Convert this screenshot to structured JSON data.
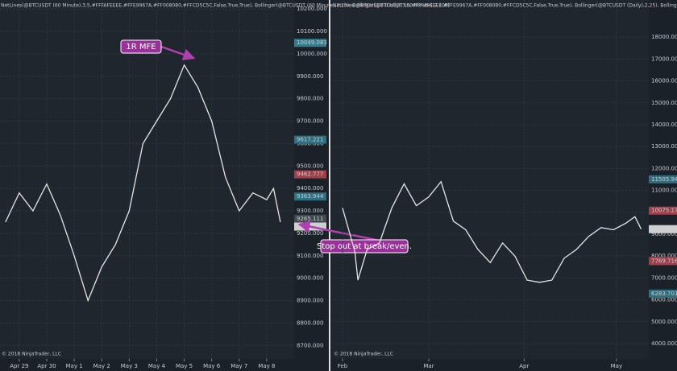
{
  "chart_data": [
    {
      "type": "line",
      "title": "NetLines(@BTCUSDT (60 Minute),3,5,#FFFAFEEEE,#FFE9967A,#FF008080,#FFCD5C5C,False,True,True), Bollinger(@BTCUSDT (60 Minute),2,25), Bollinger(@BTCUSDT (60 Minute),2,100)",
      "footer": "© 2018 NinjaTrader, LLC",
      "x": [
        0.5,
        1,
        1.5,
        2,
        2.5,
        3,
        3.5,
        4,
        4.5,
        5,
        5.5,
        6,
        6.5,
        7,
        7.5,
        8,
        8.5,
        9,
        9.5,
        10,
        10.25,
        10.5
      ],
      "series": [
        {
          "name": "BTCUSDT (60 Minute)",
          "color": "#e6e6e6",
          "values": [
            9250,
            9380,
            9300,
            9420,
            9280,
            9100,
            8900,
            9050,
            9150,
            9300,
            9600,
            9700,
            9800,
            9950,
            9850,
            9700,
            9450,
            9300,
            9380,
            9350,
            9400,
            9250
          ]
        }
      ],
      "xlim": [
        0.3,
        11
      ],
      "xticks": [
        {
          "value": 1,
          "label": "Apr 29"
        },
        {
          "value": 2,
          "label": "Apr 30"
        },
        {
          "value": 3,
          "label": "May 1"
        },
        {
          "value": 4,
          "label": "May 2"
        },
        {
          "value": 5,
          "label": "May 3"
        },
        {
          "value": 6,
          "label": "May 4"
        },
        {
          "value": 7,
          "label": "May 5"
        },
        {
          "value": 8,
          "label": "May 6"
        },
        {
          "value": 9,
          "label": "May 7"
        },
        {
          "value": 10,
          "label": "May 8"
        }
      ],
      "ylim": [
        8640,
        10240
      ],
      "yticks": [
        {
          "value": 8700,
          "label": "8700.000"
        },
        {
          "value": 8800,
          "label": "8800.000"
        },
        {
          "value": 8900,
          "label": "8900.000"
        },
        {
          "value": 9000,
          "label": "9000.000"
        },
        {
          "value": 9100,
          "label": "9100.000"
        },
        {
          "value": 9200,
          "label": "9200.000"
        },
        {
          "value": 9300,
          "label": "9300.000"
        },
        {
          "value": 9400,
          "label": "9400.000"
        },
        {
          "value": 9500,
          "label": "9500.000"
        },
        {
          "value": 9600,
          "label": "9600.000"
        },
        {
          "value": 9700,
          "label": "9700.000"
        },
        {
          "value": 9800,
          "label": "9800.000"
        },
        {
          "value": 9900,
          "label": "9900.000"
        },
        {
          "value": 10000,
          "label": "10000.000"
        },
        {
          "value": 10100,
          "label": "10100.000"
        },
        {
          "value": 10200,
          "label": "10200.000"
        }
      ],
      "grid": true,
      "price_labels": [
        {
          "value": 10049.083,
          "label": "10049.083",
          "color": "#2f7f8f"
        },
        {
          "value": 9617.221,
          "label": "9617.221",
          "color": "#2f6f7f"
        },
        {
          "value": 9462.777,
          "label": "9462.777",
          "color": "#a0404a"
        },
        {
          "value": 9363.944,
          "label": "9363.944",
          "color": "#2f6f7f"
        },
        {
          "value": 9265.111,
          "label": "9265.111",
          "color": "#404a50"
        },
        {
          "value": 9230,
          "label": "9230.000",
          "color": "#d0d0d0"
        }
      ],
      "annotations": [
        "1R MFE",
        "Stop out at break/even."
      ]
    },
    {
      "type": "line",
      "title": "NetLines(@BTCUSDT (Daily),3,5,#FFFAFEEEE,#FFE9967A,#FF008080,#FFCD5C5C,False,True,True), Bollinger(@BTCUSDT (Daily),2,25), Bollinger(@BTCUSDT (Daily),2,100)",
      "footer": "© 2018 NinjaTrader, LLC",
      "x": [
        0,
        4,
        5,
        8,
        12,
        16,
        20,
        24,
        28,
        32,
        36,
        40,
        44,
        48,
        52,
        56,
        60,
        64,
        68,
        72,
        76,
        80,
        84,
        88,
        92,
        95,
        97
      ],
      "series": [
        {
          "name": "BTCUSDT (Daily)",
          "color": "#e6e6e6",
          "values": [
            10200,
            8200,
            6900,
            8300,
            8600,
            10200,
            11300,
            10300,
            10700,
            11400,
            9600,
            9200,
            8300,
            7700,
            8600,
            8000,
            6900,
            6800,
            6900,
            7900,
            8300,
            8900,
            9300,
            9200,
            9500,
            9800,
            9230
          ]
        }
      ],
      "xlim": [
        -3.4,
        99.5
      ],
      "xticks": [
        {
          "value": 0,
          "label": "Feb"
        },
        {
          "value": 28,
          "label": "Mar"
        },
        {
          "value": 59,
          "label": "Apr"
        },
        {
          "value": 89,
          "label": "May"
        }
      ],
      "ylim": [
        3300,
        19700
      ],
      "yticks": [
        {
          "value": 4000,
          "label": "4000.000"
        },
        {
          "value": 5000,
          "label": "5000.000"
        },
        {
          "value": 6000,
          "label": "6000.000"
        },
        {
          "value": 7000,
          "label": "7000.000"
        },
        {
          "value": 8000,
          "label": "8000.000"
        },
        {
          "value": 9000,
          "label": "9000.000"
        },
        {
          "value": 10000,
          "label": "10000.000"
        },
        {
          "value": 11000,
          "label": "11000.000"
        },
        {
          "value": 12000,
          "label": "12000.000"
        },
        {
          "value": 13000,
          "label": "13000.000"
        },
        {
          "value": 14000,
          "label": "14000.000"
        },
        {
          "value": 15000,
          "label": "15000.000"
        },
        {
          "value": 16000,
          "label": "16000.000"
        },
        {
          "value": 17000,
          "label": "17000.000"
        },
        {
          "value": 18000,
          "label": "18000.000"
        }
      ],
      "grid": true,
      "price_labels": [
        {
          "value": 11505.947,
          "label": "11505.947",
          "color": "#2f6f7f"
        },
        {
          "value": 10075.17,
          "label": "10075.17",
          "color": "#a0404a"
        },
        {
          "value": 9230,
          "label": "9230.000",
          "color": "#d0d0d0"
        },
        {
          "value": 7769.716,
          "label": "7769.716",
          "color": "#a0404a"
        },
        {
          "value": 6283.701,
          "label": "6283.701",
          "color": "#2f6f7f"
        }
      ],
      "annotations": []
    }
  ]
}
